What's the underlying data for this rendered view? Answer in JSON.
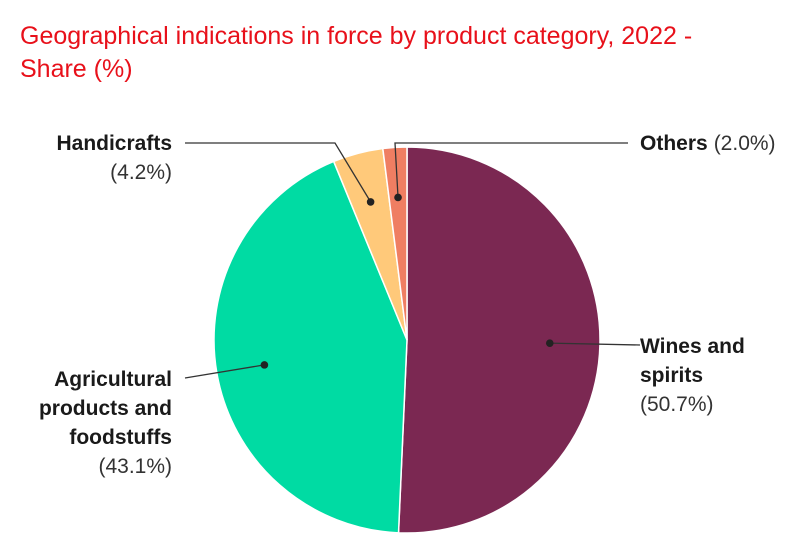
{
  "chart_data": {
    "type": "pie",
    "title": "Geographical indications in force by product category, 2022 - Share (%)",
    "title_lines": [
      "Geographical indications in force by product category, 2022 -",
      "Share (%)"
    ],
    "slices": [
      {
        "name": "Wines and spirits",
        "label_lines": [
          "Wines and",
          "spirits"
        ],
        "value_label": "(50.7%)",
        "value": 50.7,
        "color": "#7b2852"
      },
      {
        "name": "Agricultural products and foodstuffs",
        "label_lines": [
          "Agricultural",
          "products and",
          "foodstuffs"
        ],
        "value_label": "(43.1%)",
        "value": 43.1,
        "color": "#00dba3"
      },
      {
        "name": "Handicrafts",
        "label_lines": [
          "Handicrafts"
        ],
        "value_label": "(4.2%)",
        "value": 4.2,
        "color": "#ffc97a"
      },
      {
        "name": "Others",
        "label_lines": [
          "Others"
        ],
        "value_label": "(2.0%)",
        "value": 2.0,
        "color": "#ef7e62"
      }
    ],
    "legend": "none"
  }
}
